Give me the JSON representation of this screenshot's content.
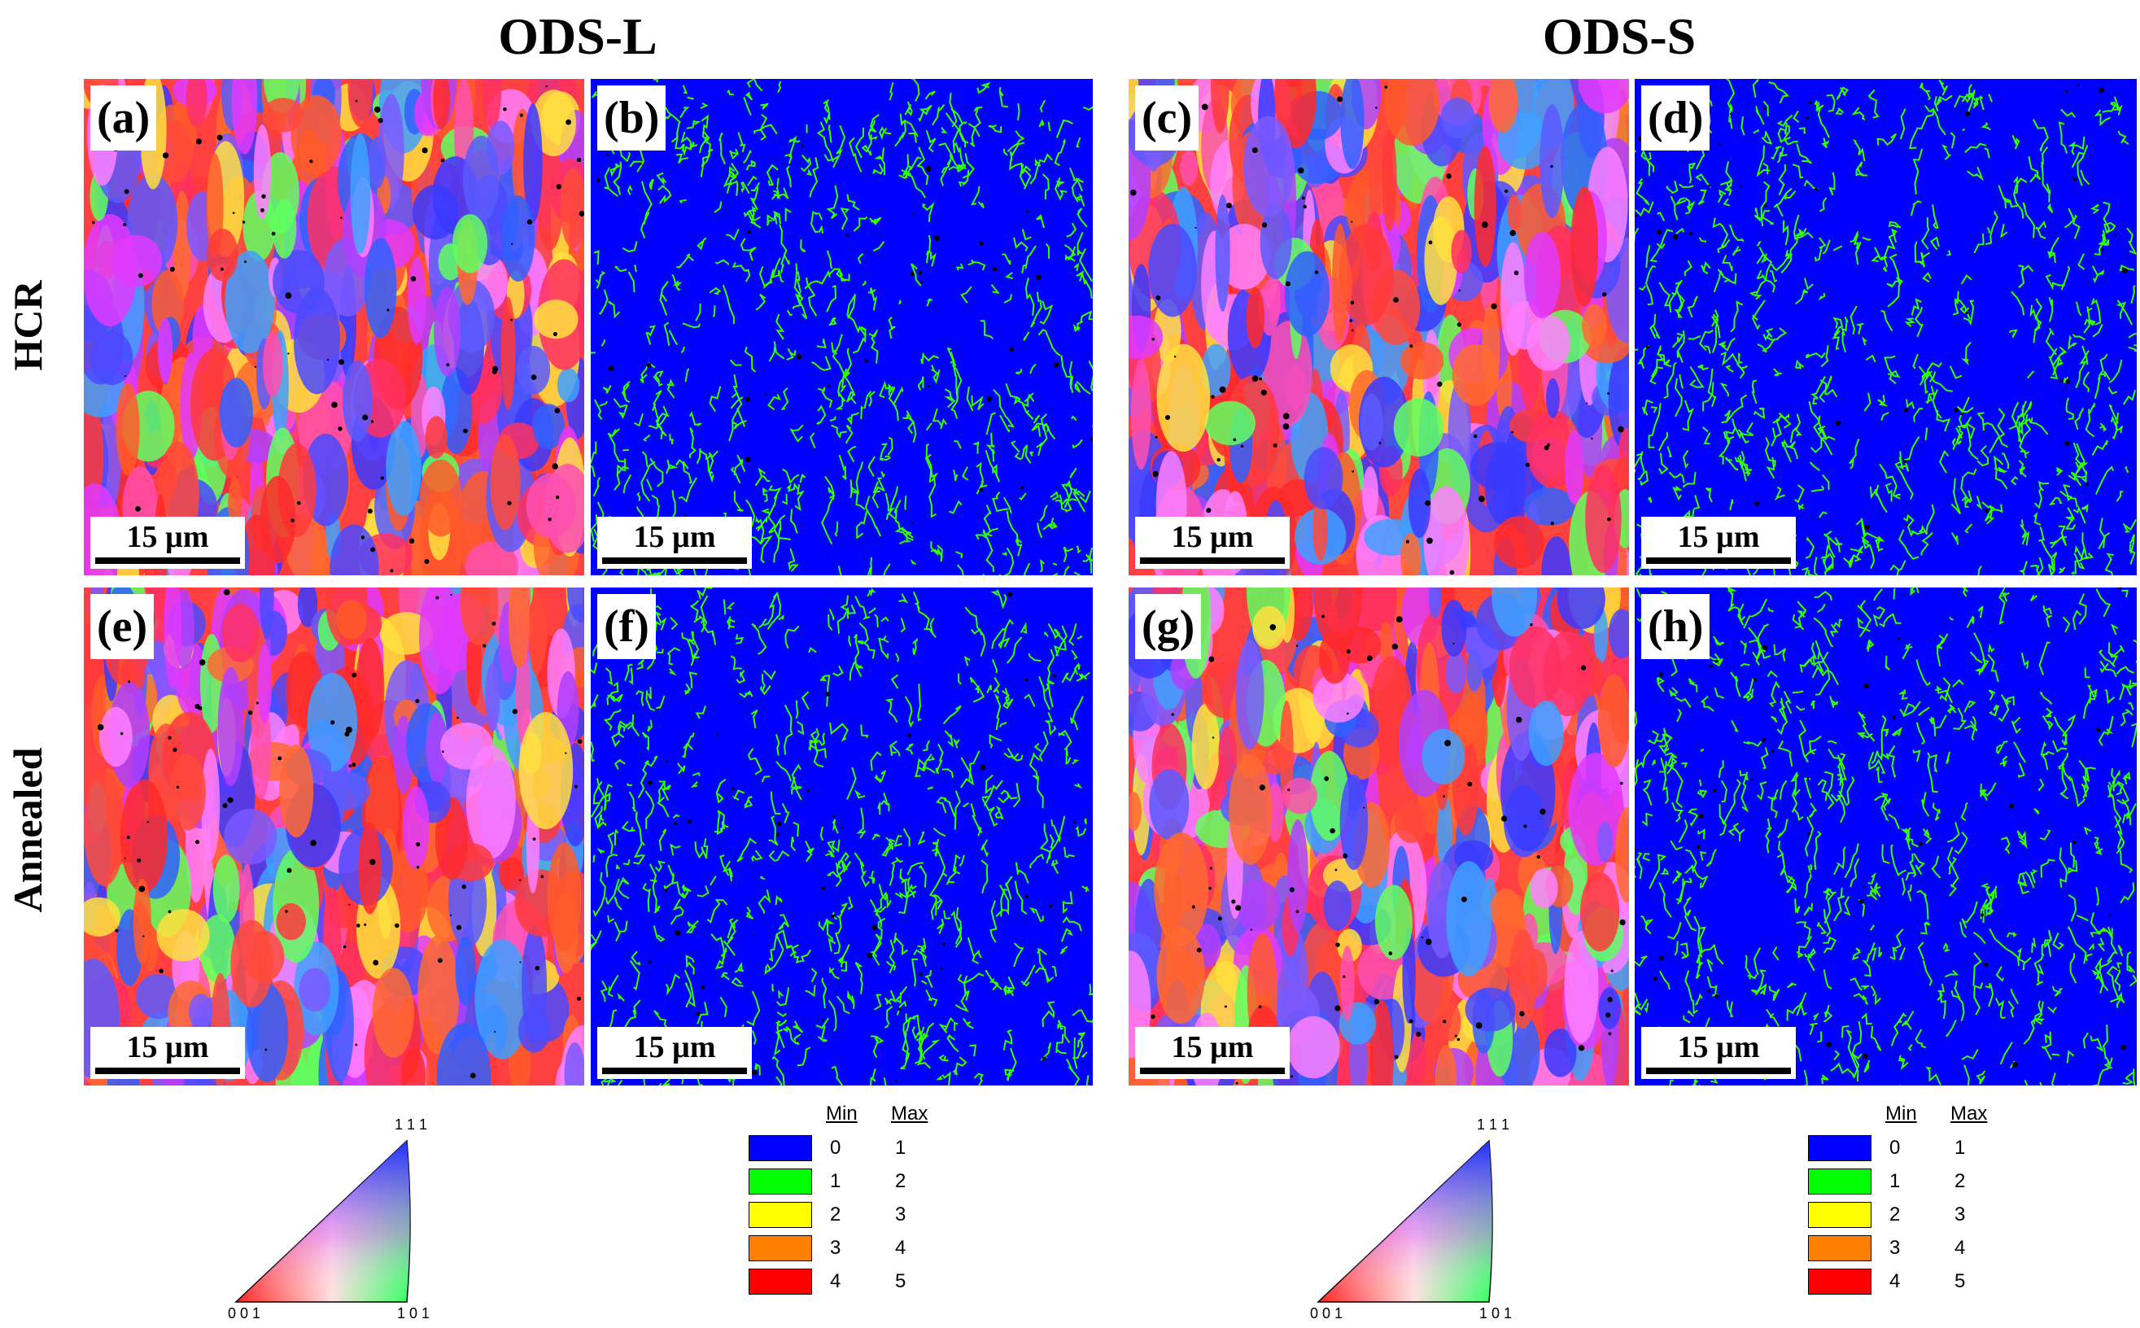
{
  "figure": {
    "column_titles": [
      "ODS-L",
      "ODS-S"
    ],
    "row_titles": [
      "HCR",
      "Annealed"
    ],
    "panels": [
      {
        "label": "(a)",
        "type": "ipf-map",
        "scale_bar": "15 µm"
      },
      {
        "label": "(b)",
        "type": "kam-map",
        "scale_bar": "15 µm"
      },
      {
        "label": "(c)",
        "type": "ipf-map",
        "scale_bar": "15 µm"
      },
      {
        "label": "(d)",
        "type": "kam-map",
        "scale_bar": "15 µm"
      },
      {
        "label": "(e)",
        "type": "ipf-map",
        "scale_bar": "15 µm"
      },
      {
        "label": "(f)",
        "type": "kam-map",
        "scale_bar": "15 µm"
      },
      {
        "label": "(g)",
        "type": "ipf-map",
        "scale_bar": "15 µm"
      },
      {
        "label": "(h)",
        "type": "kam-map",
        "scale_bar": "15 µm"
      }
    ],
    "kam_legend": {
      "min_header": "Min",
      "max_header": "Max",
      "rows": [
        {
          "min": "0",
          "max": "1",
          "color": "#0000ff"
        },
        {
          "min": "1",
          "max": "2",
          "color": "#00ff00"
        },
        {
          "min": "2",
          "max": "3",
          "color": "#ffff00"
        },
        {
          "min": "3",
          "max": "4",
          "color": "#ff8000"
        },
        {
          "min": "4",
          "max": "5",
          "color": "#ff0000"
        }
      ]
    },
    "ipf_key": {
      "top": "1 1 1",
      "left": "0 0 1",
      "right": "1 0 1"
    },
    "colors": {
      "kam_background": "#0000ff",
      "kam_boundary": "#33ff00",
      "ipf_red": "#ff2a2a",
      "ipf_blue": "#3a3aff",
      "ipf_green": "#2aff2a"
    }
  }
}
